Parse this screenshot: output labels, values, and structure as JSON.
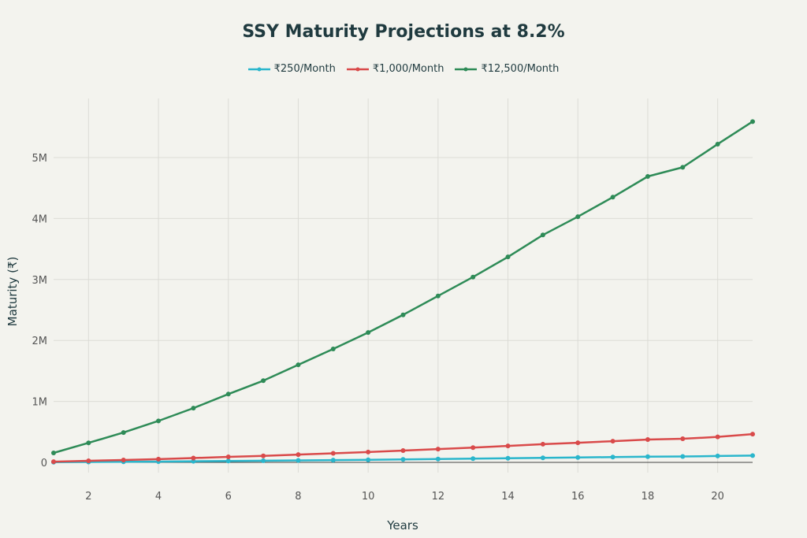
{
  "chart_data": {
    "type": "line",
    "title": "SSY Maturity Projections at 8.2%",
    "xlabel": "Years",
    "ylabel": "Maturity (₹)",
    "xlim": [
      1,
      21
    ],
    "ylim": [
      0,
      5.8
    ],
    "xticks": [
      "2",
      "4",
      "6",
      "8",
      "10",
      "12",
      "14",
      "16",
      "18",
      "20"
    ],
    "yticks": [
      "0",
      "1M",
      "2M",
      "3M",
      "4M",
      "5M"
    ],
    "grid": true,
    "legend_position": "top-center",
    "x": [
      1,
      2,
      3,
      4,
      5,
      6,
      7,
      8,
      9,
      10,
      11,
      12,
      13,
      14,
      15,
      16,
      17,
      18,
      19,
      20,
      21
    ],
    "series": [
      {
        "name": "₹250/Month",
        "color": "#2ab6cc",
        "values": [
          0.003,
          0.0064,
          0.0098,
          0.0136,
          0.0178,
          0.0224,
          0.0268,
          0.032,
          0.0372,
          0.0426,
          0.0484,
          0.0546,
          0.0608,
          0.0674,
          0.0746,
          0.0806,
          0.087,
          0.0938,
          0.0968,
          0.1044,
          0.1118
        ]
      },
      {
        "name": "₹1,000/Month",
        "color": "#d94a4a",
        "values": [
          0.012,
          0.026,
          0.039,
          0.054,
          0.071,
          0.09,
          0.107,
          0.128,
          0.149,
          0.17,
          0.194,
          0.218,
          0.243,
          0.27,
          0.298,
          0.322,
          0.348,
          0.375,
          0.387,
          0.418,
          0.463
        ]
      },
      {
        "name": "₹12,500/Month",
        "color": "#2e8b57",
        "values": [
          0.155,
          0.32,
          0.49,
          0.68,
          0.89,
          1.12,
          1.34,
          1.6,
          1.86,
          2.13,
          2.42,
          2.73,
          3.04,
          3.37,
          3.73,
          4.03,
          4.35,
          4.69,
          4.84,
          5.22,
          5.59
        ]
      }
    ]
  }
}
